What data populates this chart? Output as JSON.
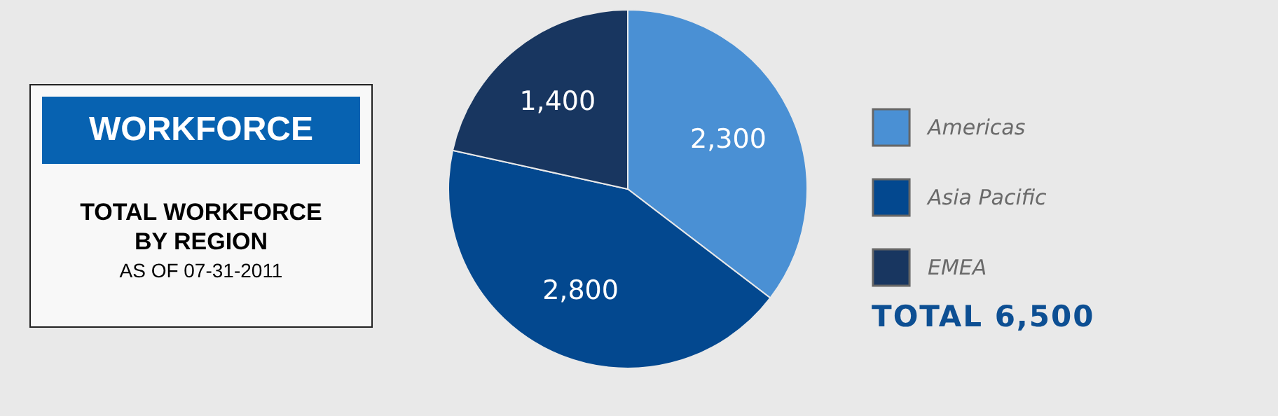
{
  "chart_data": {
    "type": "pie",
    "title": "WORKFORCE",
    "subtitle": "TOTAL WORKFORCE BY REGION",
    "annotations": [
      "AS OF 07-31-2011",
      "TOTAL 6,500"
    ],
    "categories": [
      "Americas",
      "Asia Pacific",
      "EMEA"
    ],
    "values": [
      2300,
      2800,
      1400
    ],
    "colors": [
      "#4a90d4",
      "#03488f",
      "#183660"
    ],
    "value_labels": [
      "2,300",
      "2,800",
      "1,400"
    ],
    "legend": "right"
  }
}
